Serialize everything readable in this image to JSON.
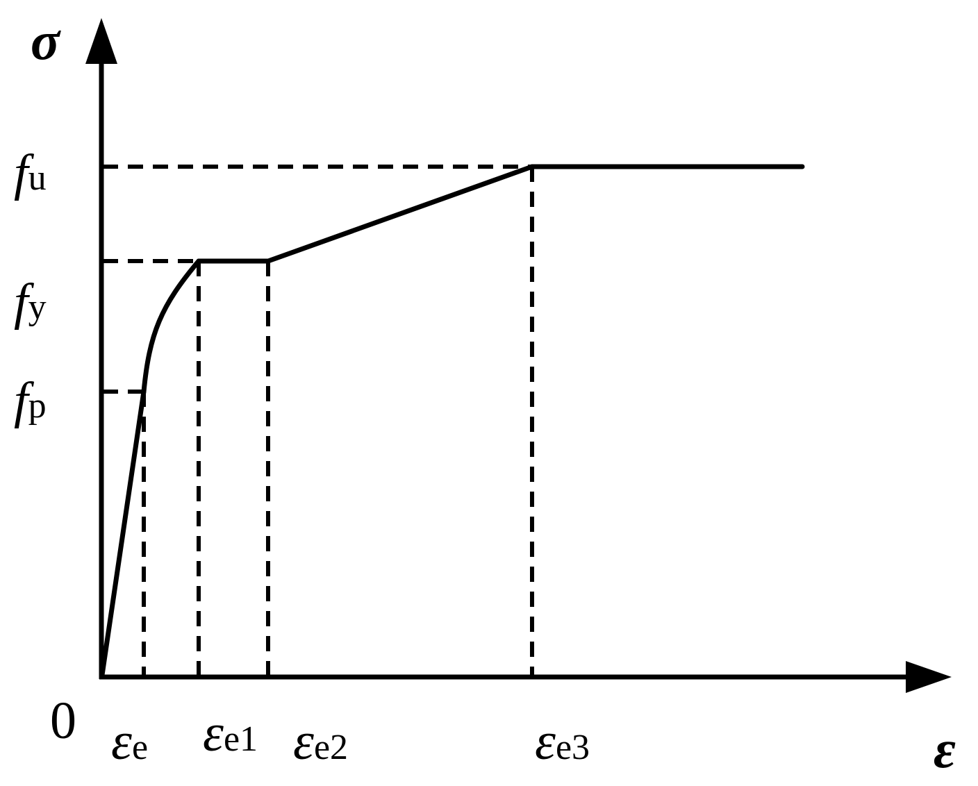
{
  "axes": {
    "y_symbol": "σ",
    "x_symbol": "ε",
    "origin": "0"
  },
  "stress_levels": [
    {
      "id": "fu",
      "symbol": "f",
      "subscript": "u"
    },
    {
      "id": "fy",
      "symbol": "f",
      "subscript": "y"
    },
    {
      "id": "fp",
      "symbol": "f",
      "subscript": "p"
    }
  ],
  "strain_levels": [
    {
      "id": "ee",
      "symbol": "ε",
      "subscript": "e"
    },
    {
      "id": "ee1",
      "symbol": "ε",
      "subscript": "e1"
    },
    {
      "id": "ee2",
      "symbol": "ε",
      "subscript": "e2"
    },
    {
      "id": "ee3",
      "symbol": "ε",
      "subscript": "e3"
    }
  ],
  "colors": {
    "line": "#000000",
    "background": "#ffffff"
  }
}
